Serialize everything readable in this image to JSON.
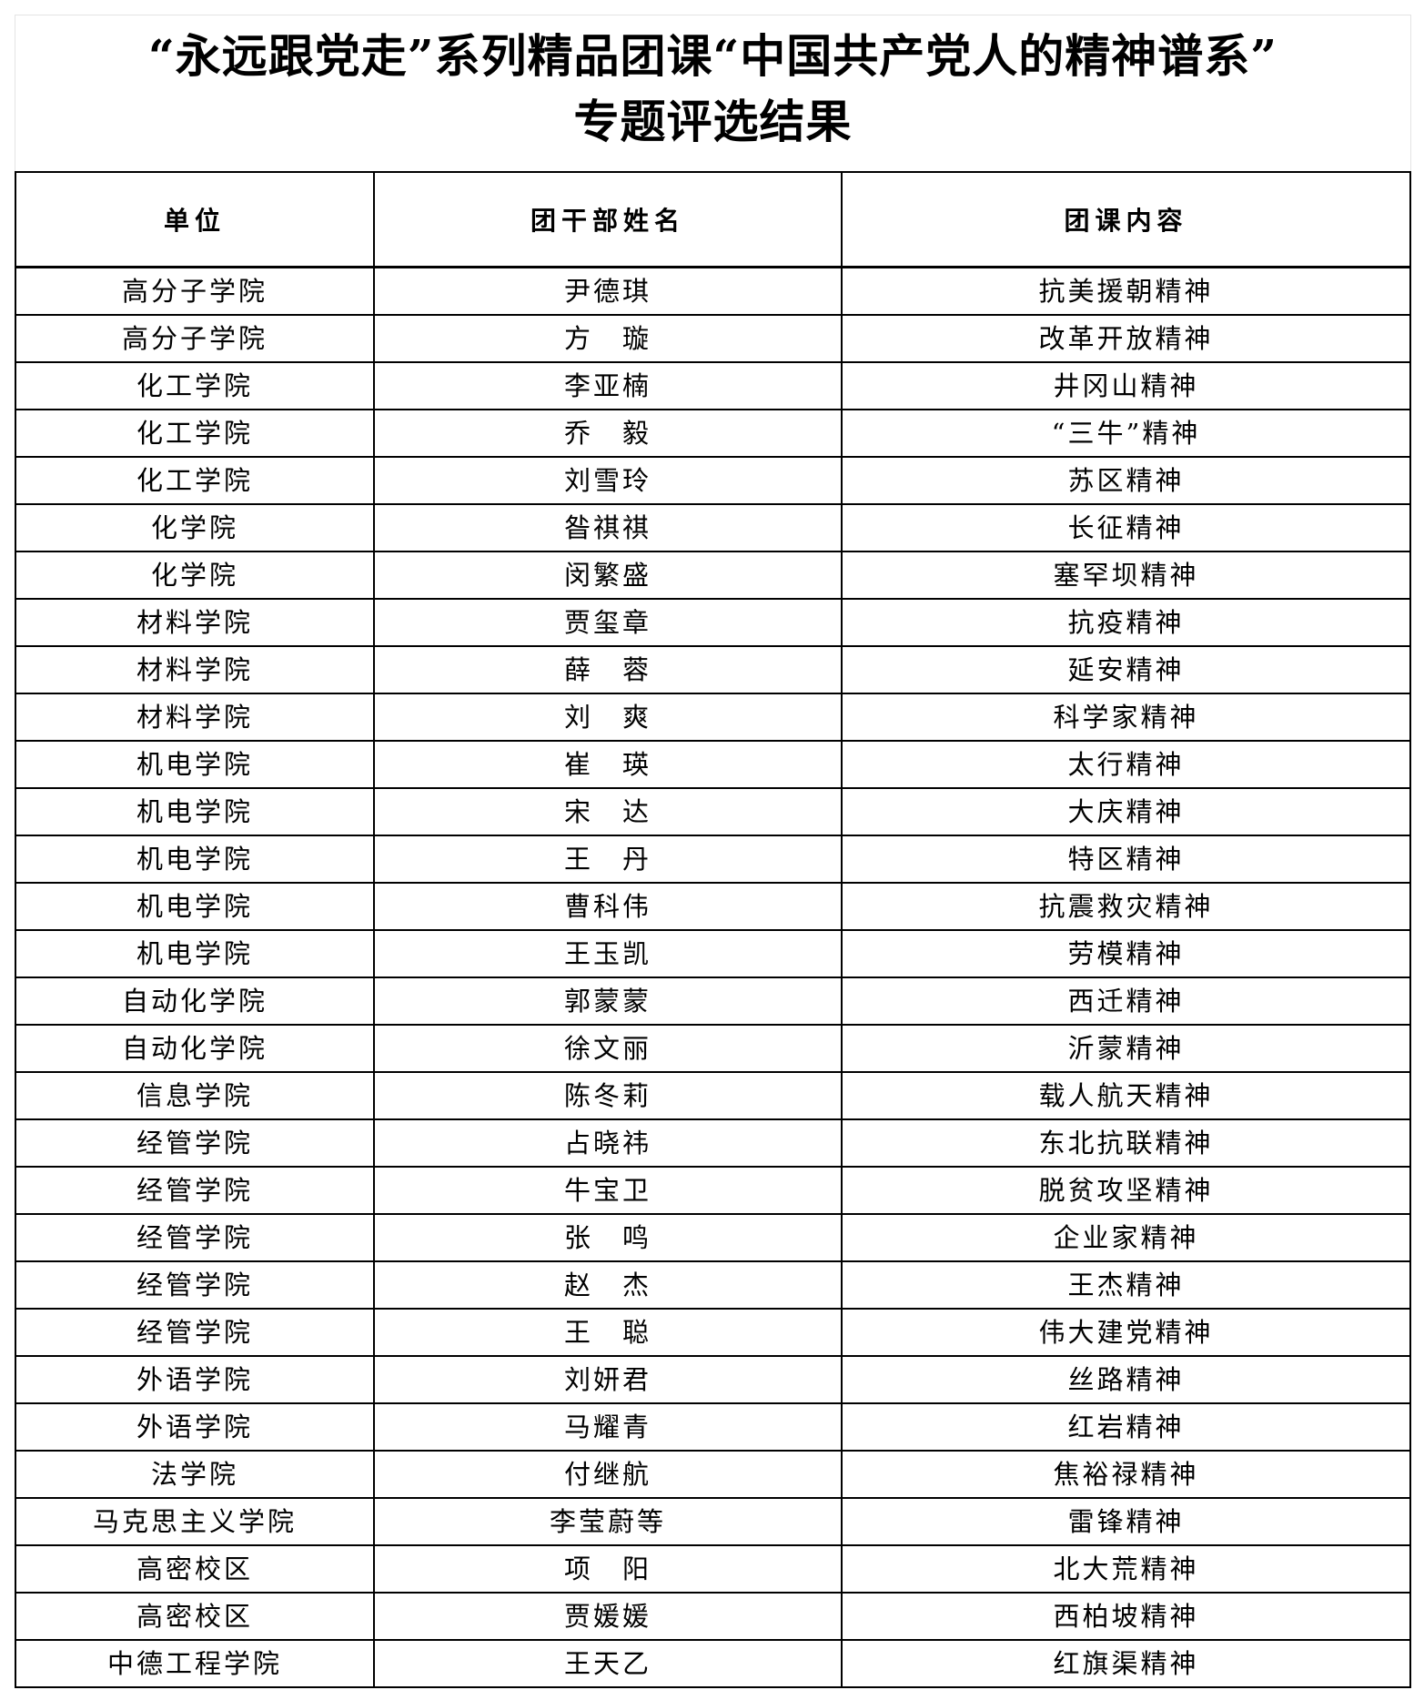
{
  "title": {
    "line1": "“永远跟党走”系列精品团课“中国共产党人的精神谱系”",
    "line2": "专题评选结果"
  },
  "table": {
    "headers": [
      "单位",
      "团干部姓名",
      "团课内容"
    ],
    "rows": [
      [
        "高分子学院",
        "尹德琪",
        "抗美援朝精神"
      ],
      [
        "高分子学院",
        "方　璇",
        "改革开放精神"
      ],
      [
        "化工学院",
        "李亚楠",
        "井冈山精神"
      ],
      [
        "化工学院",
        "乔　毅",
        "“三牛”精神"
      ],
      [
        "化工学院",
        "刘雪玲",
        "苏区精神"
      ],
      [
        "化学院",
        "昝祺祺",
        "长征精神"
      ],
      [
        "化学院",
        "闵繁盛",
        "塞罕坝精神"
      ],
      [
        "材料学院",
        "贾玺章",
        "抗疫精神"
      ],
      [
        "材料学院",
        "薛　蓉",
        "延安精神"
      ],
      [
        "材料学院",
        "刘　爽",
        "科学家精神"
      ],
      [
        "机电学院",
        "崔　瑛",
        "太行精神"
      ],
      [
        "机电学院",
        "宋　达",
        "大庆精神"
      ],
      [
        "机电学院",
        "王　丹",
        "特区精神"
      ],
      [
        "机电学院",
        "曹科伟",
        "抗震救灾精神"
      ],
      [
        "机电学院",
        "王玉凯",
        "劳模精神"
      ],
      [
        "自动化学院",
        "郭蒙蒙",
        "西迁精神"
      ],
      [
        "自动化学院",
        "徐文丽",
        "沂蒙精神"
      ],
      [
        "信息学院",
        "陈冬莉",
        "载人航天精神"
      ],
      [
        "经管学院",
        "占晓祎",
        "东北抗联精神"
      ],
      [
        "经管学院",
        "牛宝卫",
        "脱贫攻坚精神"
      ],
      [
        "经管学院",
        "张　鸣",
        "企业家精神"
      ],
      [
        "经管学院",
        "赵　杰",
        "王杰精神"
      ],
      [
        "经管学院",
        "王　聪",
        "伟大建党精神"
      ],
      [
        "外语学院",
        "刘妍君",
        "丝路精神"
      ],
      [
        "外语学院",
        "马耀青",
        "红岩精神"
      ],
      [
        "法学院",
        "付继航",
        "焦裕禄精神"
      ],
      [
        "马克思主义学院",
        "李莹蔚等",
        "雷锋精神"
      ],
      [
        "高密校区",
        "项　阳",
        "北大荒精神"
      ],
      [
        "高密校区",
        "贾媛媛",
        "西柏坡精神"
      ],
      [
        "中德工程学院",
        "王天乙",
        "红旗渠精神"
      ]
    ]
  }
}
